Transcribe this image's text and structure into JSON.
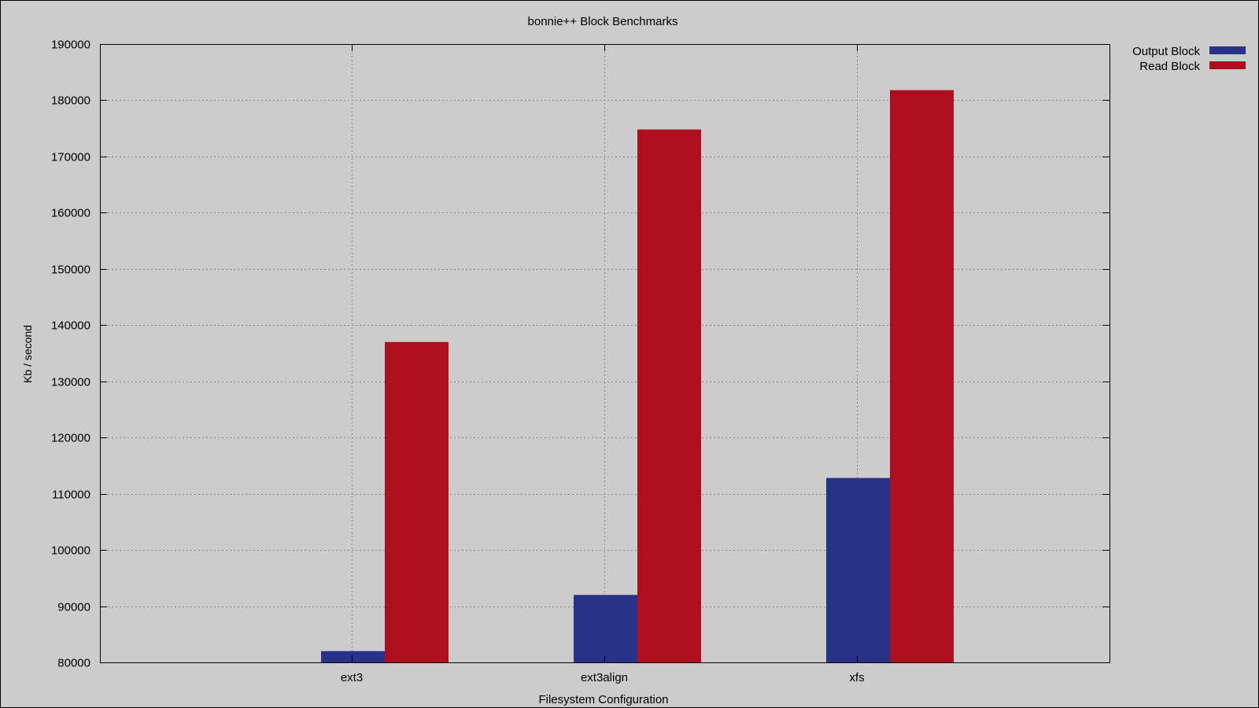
{
  "chart_data": {
    "type": "bar",
    "title": "bonnie++ Block Benchmarks",
    "xlabel": "Filesystem Configuration",
    "ylabel": "Kb / second",
    "categories": [
      "ext3",
      "ext3align",
      "xfs"
    ],
    "series": [
      {
        "name": "Output Block",
        "values": [
          82000,
          92000,
          112800
        ],
        "color": "#283388"
      },
      {
        "name": "Read Block",
        "values": [
          137000,
          174800,
          181800
        ],
        "color": "#ad0f1f"
      }
    ],
    "ylim": [
      80000,
      190000
    ],
    "yticks": [
      80000,
      90000,
      100000,
      110000,
      120000,
      130000,
      140000,
      150000,
      160000,
      170000,
      180000,
      190000
    ],
    "grid": true,
    "legend_position": "top-right",
    "background_color": "#cccccc"
  }
}
